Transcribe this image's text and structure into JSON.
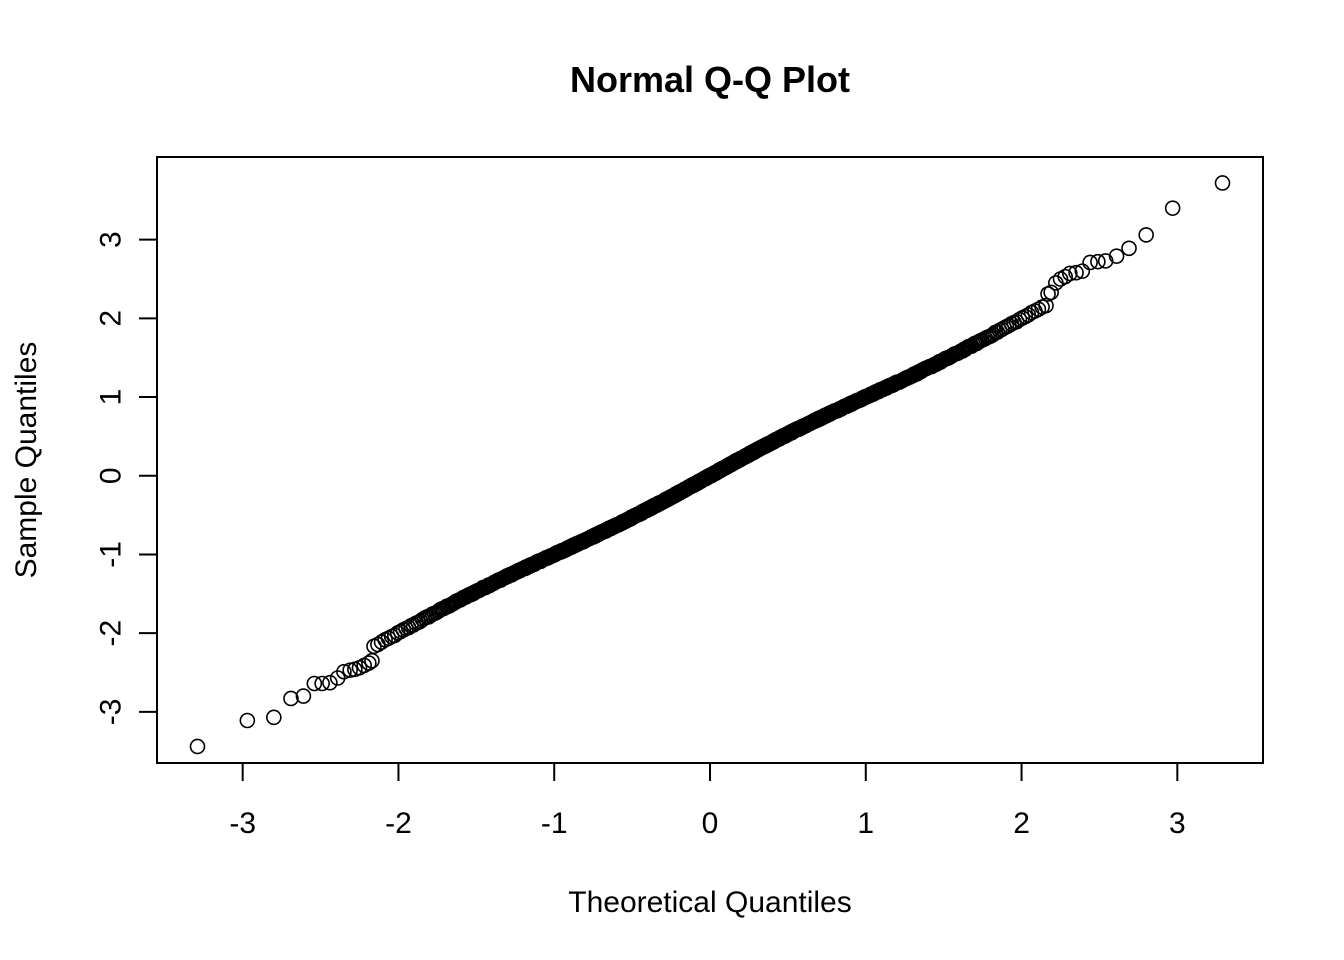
{
  "chart_data": {
    "type": "scatter",
    "title": "Normal Q-Q Plot",
    "xlabel": "Theoretical Quantiles",
    "ylabel": "Sample Quantiles",
    "xlim": [
      -3.55,
      3.55
    ],
    "ylim": [
      -3.65,
      4.05
    ],
    "xticks": [
      -3,
      -2,
      -1,
      0,
      1,
      2,
      3
    ],
    "yticks": [
      -3,
      -2,
      -1,
      0,
      1,
      2,
      3
    ],
    "xtick_labels": [
      "-3",
      "-2",
      "-1",
      "0",
      "1",
      "2",
      "3"
    ],
    "ytick_labels": [
      "-3",
      "-2",
      "-1",
      "0",
      "1",
      "2",
      "3"
    ],
    "grid": false,
    "legend": "none",
    "n": 1000,
    "tail_points": [
      [
        -3.29,
        -3.44
      ],
      [
        -2.97,
        -3.11
      ],
      [
        -2.8,
        -3.07
      ],
      [
        -2.69,
        -2.83
      ],
      [
        -2.61,
        -2.8
      ],
      [
        -2.54,
        -2.64
      ],
      [
        -2.49,
        -2.64
      ],
      [
        -2.44,
        -2.63
      ],
      [
        -2.39,
        -2.57
      ],
      [
        -2.35,
        -2.49
      ],
      [
        -2.31,
        -2.47
      ],
      [
        -2.28,
        -2.46
      ],
      [
        -2.25,
        -2.44
      ],
      [
        -2.22,
        -2.41
      ],
      [
        -2.19,
        -2.38
      ],
      [
        -2.17,
        -2.35
      ],
      [
        2.17,
        2.31
      ],
      [
        2.19,
        2.33
      ],
      [
        2.22,
        2.45
      ],
      [
        2.25,
        2.5
      ],
      [
        2.28,
        2.53
      ],
      [
        2.31,
        2.57
      ],
      [
        2.35,
        2.58
      ],
      [
        2.39,
        2.6
      ],
      [
        2.44,
        2.71
      ],
      [
        2.49,
        2.72
      ],
      [
        2.54,
        2.73
      ],
      [
        2.61,
        2.79
      ],
      [
        2.69,
        2.89
      ],
      [
        2.8,
        3.06
      ],
      [
        2.97,
        3.4
      ],
      [
        3.29,
        3.72
      ]
    ],
    "series_color": "#000000"
  }
}
